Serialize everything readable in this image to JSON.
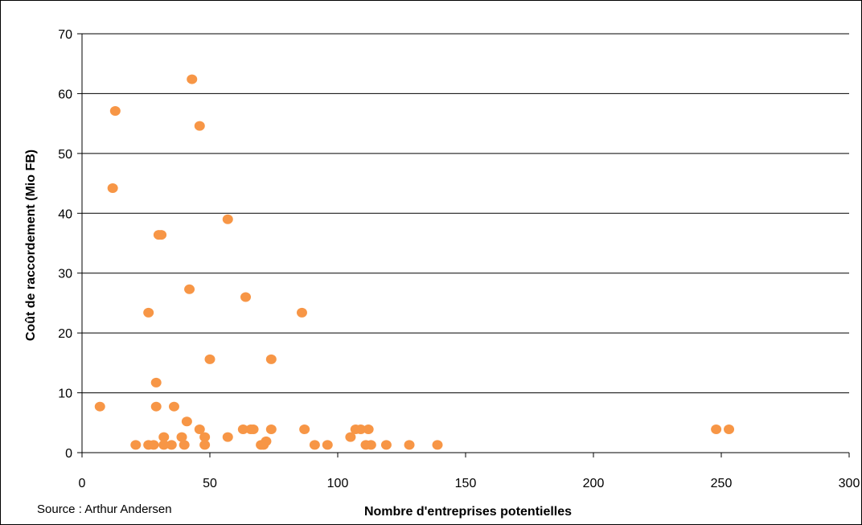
{
  "chart_data": {
    "type": "scatter",
    "title": "",
    "xlabel": "Nombre d'entreprises potentielles",
    "ylabel": "Coût de raccordement (Mio FB)",
    "xlim": [
      0,
      300
    ],
    "ylim": [
      0,
      70
    ],
    "xticks": [
      0,
      50,
      100,
      150,
      200,
      250,
      300
    ],
    "yticks": [
      0,
      10,
      20,
      30,
      40,
      50,
      60,
      70
    ],
    "grid": "horizontal",
    "legend": "none",
    "point_color": "#F79646",
    "source_note": "Source : Arthur Andersen",
    "points": [
      [
        7,
        7.7
      ],
      [
        12,
        44.2
      ],
      [
        13,
        57.1
      ],
      [
        21,
        1.3
      ],
      [
        26,
        23.4
      ],
      [
        26,
        1.3
      ],
      [
        28,
        1.3
      ],
      [
        29,
        11.7
      ],
      [
        29,
        7.7
      ],
      [
        30,
        36.4
      ],
      [
        31,
        36.4
      ],
      [
        32,
        2.6
      ],
      [
        32,
        1.3
      ],
      [
        35,
        1.3
      ],
      [
        36,
        7.7
      ],
      [
        39,
        2.6
      ],
      [
        40,
        1.3
      ],
      [
        41,
        5.2
      ],
      [
        42,
        27.3
      ],
      [
        43,
        62.4
      ],
      [
        46,
        3.9
      ],
      [
        46,
        54.6
      ],
      [
        48,
        2.6
      ],
      [
        48,
        1.3
      ],
      [
        50,
        15.6
      ],
      [
        57,
        39.0
      ],
      [
        57,
        2.6
      ],
      [
        63,
        3.9
      ],
      [
        64,
        26.0
      ],
      [
        66,
        3.9
      ],
      [
        67,
        3.9
      ],
      [
        70,
        1.3
      ],
      [
        71,
        1.3
      ],
      [
        72,
        1.9
      ],
      [
        74,
        3.9
      ],
      [
        74,
        15.6
      ],
      [
        86,
        23.4
      ],
      [
        87,
        3.9
      ],
      [
        91,
        1.3
      ],
      [
        96,
        1.3
      ],
      [
        105,
        2.6
      ],
      [
        107,
        3.9
      ],
      [
        109,
        3.9
      ],
      [
        111,
        1.3
      ],
      [
        112,
        3.9
      ],
      [
        113,
        1.3
      ],
      [
        119,
        1.3
      ],
      [
        128,
        1.3
      ],
      [
        139,
        1.3
      ],
      [
        248,
        3.9
      ],
      [
        253,
        3.9
      ]
    ]
  }
}
